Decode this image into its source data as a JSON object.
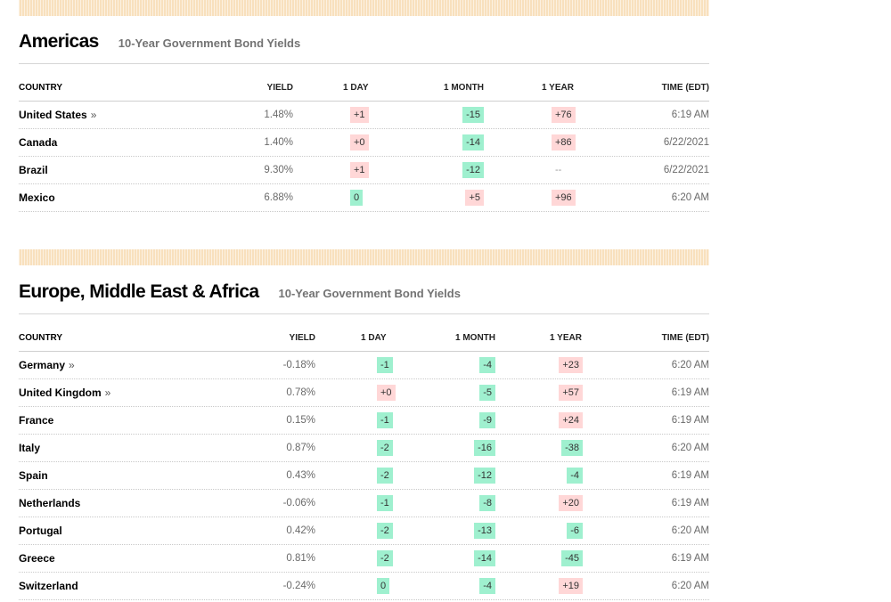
{
  "columns": {
    "country": "COUNTRY",
    "yield": "YIELD",
    "day": "1 DAY",
    "month": "1 MONTH",
    "year": "1 YEAR",
    "time": "TIME (EDT)"
  },
  "colors": {
    "band": "#f8e0bd",
    "negative": "#9ff0cf",
    "positive": "#ffd7d7"
  },
  "americas": {
    "title": "Americas",
    "subtitle": "10-Year Government Bond Yields",
    "rows": [
      {
        "country": "United States",
        "link": "»",
        "yield": "1.48%",
        "day": "+1",
        "day_sign": "pos",
        "month": "-15",
        "month_sign": "neg",
        "year": "+76",
        "year_sign": "pos",
        "time": "6:19 AM"
      },
      {
        "country": "Canada",
        "link": "",
        "yield": "1.40%",
        "day": "+0",
        "day_sign": "pos",
        "month": "-14",
        "month_sign": "neg",
        "year": "+86",
        "year_sign": "pos",
        "time": "6/22/2021"
      },
      {
        "country": "Brazil",
        "link": "",
        "yield": "9.30%",
        "day": "+1",
        "day_sign": "pos",
        "month": "-12",
        "month_sign": "neg",
        "year": "--",
        "year_sign": "none",
        "time": "6/22/2021"
      },
      {
        "country": "Mexico",
        "link": "",
        "yield": "6.88%",
        "day": "0",
        "day_sign": "zero",
        "month": "+5",
        "month_sign": "pos",
        "year": "+96",
        "year_sign": "pos",
        "time": "6:20 AM"
      }
    ]
  },
  "emea": {
    "title": "Europe, Middle East & Africa",
    "subtitle": "10-Year Government Bond Yields",
    "rows": [
      {
        "country": "Germany",
        "link": "»",
        "yield": "-0.18%",
        "day": "-1",
        "day_sign": "neg",
        "month": "-4",
        "month_sign": "neg",
        "year": "+23",
        "year_sign": "pos",
        "time": "6:20 AM"
      },
      {
        "country": "United Kingdom",
        "link": "»",
        "yield": "0.78%",
        "day": "+0",
        "day_sign": "pos",
        "month": "-5",
        "month_sign": "neg",
        "year": "+57",
        "year_sign": "pos",
        "time": "6:19 AM"
      },
      {
        "country": "France",
        "link": "",
        "yield": "0.15%",
        "day": "-1",
        "day_sign": "neg",
        "month": "-9",
        "month_sign": "neg",
        "year": "+24",
        "year_sign": "pos",
        "time": "6:19 AM"
      },
      {
        "country": "Italy",
        "link": "",
        "yield": "0.87%",
        "day": "-2",
        "day_sign": "neg",
        "month": "-16",
        "month_sign": "neg",
        "year": "-38",
        "year_sign": "neg",
        "time": "6:20 AM"
      },
      {
        "country": "Spain",
        "link": "",
        "yield": "0.43%",
        "day": "-2",
        "day_sign": "neg",
        "month": "-12",
        "month_sign": "neg",
        "year": "-4",
        "year_sign": "neg",
        "time": "6:19 AM"
      },
      {
        "country": "Netherlands",
        "link": "",
        "yield": "-0.06%",
        "day": "-1",
        "day_sign": "neg",
        "month": "-8",
        "month_sign": "neg",
        "year": "+20",
        "year_sign": "pos",
        "time": "6:19 AM"
      },
      {
        "country": "Portugal",
        "link": "",
        "yield": "0.42%",
        "day": "-2",
        "day_sign": "neg",
        "month": "-13",
        "month_sign": "neg",
        "year": "-6",
        "year_sign": "neg",
        "time": "6:20 AM"
      },
      {
        "country": "Greece",
        "link": "",
        "yield": "0.81%",
        "day": "-2",
        "day_sign": "neg",
        "month": "-14",
        "month_sign": "neg",
        "year": "-45",
        "year_sign": "neg",
        "time": "6:19 AM"
      },
      {
        "country": "Switzerland",
        "link": "",
        "yield": "-0.24%",
        "day": "0",
        "day_sign": "zero",
        "month": "-4",
        "month_sign": "neg",
        "year": "+19",
        "year_sign": "pos",
        "time": "6:20 AM"
      }
    ]
  }
}
